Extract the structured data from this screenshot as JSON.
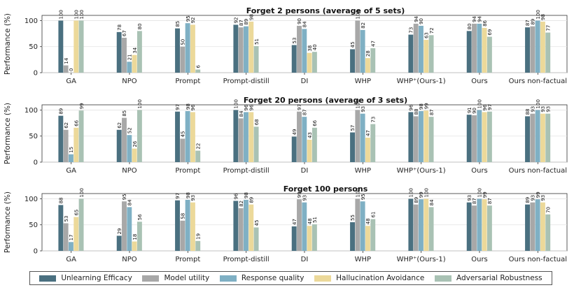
{
  "chart_data": {
    "type": "bar",
    "ylabel": "Performance (%)",
    "ylim": [
      0,
      100
    ],
    "yticks": [
      0,
      50,
      100
    ],
    "categories": [
      "GA",
      "NPO",
      "Prompt",
      "Prompt-distill",
      "DI",
      "WHP",
      "WHP⁺(Ours-1)",
      "Ours",
      "Ours non-factual"
    ],
    "series_names": [
      "Unlearning Efficacy",
      "Model utility",
      "Response quality",
      "Hallucination Avoidance",
      "Adversarial Robustness"
    ],
    "colors": [
      "#4a7080",
      "#a8a8a8",
      "#7fb0c4",
      "#ecd99a",
      "#a9c2b4"
    ],
    "panels": [
      {
        "title": "Forget 2 persons (average of 5 sets)",
        "series": [
          {
            "name": "Unlearning Efficacy",
            "values": [
              100,
              78,
              85,
              92,
              53,
              45,
              73,
              80,
              87
            ]
          },
          {
            "name": "Model utility",
            "values": [
              14,
              67,
              50,
              87,
              90,
              100,
              94,
              94,
              89
            ]
          },
          {
            "name": "Response quality",
            "values": [
              0,
              21,
              95,
              89,
              84,
              82,
              90,
              94,
              100
            ]
          },
          {
            "name": "Hallucination Avoidance",
            "values": [
              100,
              34,
              92,
              98,
              38,
              28,
              63,
              86,
              98
            ]
          },
          {
            "name": "Adversarial Robustness",
            "values": [
              100,
              80,
              6,
              51,
              40,
              47,
              72,
              69,
              77
            ]
          }
        ]
      },
      {
        "title": "Forget 20 persons (average of 3 sets)",
        "series": [
          {
            "name": "Unlearning Efficacy",
            "values": [
              89,
              62,
              97,
              100,
              49,
              57,
              96,
              91,
              88
            ]
          },
          {
            "name": "Model utility",
            "values": [
              62,
              85,
              45,
              84,
              97,
              100,
              88,
              90,
              93
            ]
          },
          {
            "name": "Response quality",
            "values": [
              15,
              52,
              98,
              96,
              87,
              93,
              98,
              100,
              100
            ]
          },
          {
            "name": "Hallucination Avoidance",
            "values": [
              66,
              26,
              96,
              96,
              43,
              47,
              99,
              96,
              93
            ]
          },
          {
            "name": "Adversarial Robustness",
            "values": [
              99,
              100,
              22,
              68,
              66,
              73,
              87,
              97,
              93
            ]
          }
        ]
      },
      {
        "title": "Forget 100 persons",
        "series": [
          {
            "name": "Unlearning Efficacy",
            "values": [
              88,
              29,
              97,
              96,
              47,
              55,
              100,
              93,
              89
            ]
          },
          {
            "name": "Model utility",
            "values": [
              53,
              95,
              58,
              82,
              99,
              100,
              89,
              87,
              93
            ]
          },
          {
            "name": "Response quality",
            "values": [
              17,
              84,
              98,
              98,
              93,
              95,
              99,
              100,
              99
            ]
          },
          {
            "name": "Hallucination Avoidance",
            "values": [
              65,
              18,
              93,
              89,
              48,
              48,
              100,
              99,
              93
            ]
          },
          {
            "name": "Adversarial Robustness",
            "values": [
              100,
              56,
              19,
              45,
              51,
              61,
              84,
              87,
              70
            ]
          }
        ]
      }
    ]
  }
}
